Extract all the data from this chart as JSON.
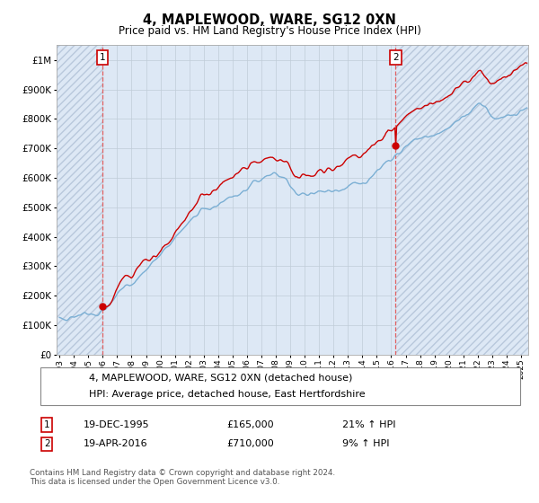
{
  "title": "4, MAPLEWOOD, WARE, SG12 0XN",
  "subtitle": "Price paid vs. HM Land Registry's House Price Index (HPI)",
  "ylim": [
    0,
    1050000
  ],
  "yticks": [
    0,
    100000,
    200000,
    300000,
    400000,
    500000,
    600000,
    700000,
    800000,
    900000,
    1000000
  ],
  "ytick_labels": [
    "£0",
    "£100K",
    "£200K",
    "£300K",
    "£400K",
    "£500K",
    "£600K",
    "£700K",
    "£800K",
    "£900K",
    "£1M"
  ],
  "sale1_date": 1995.97,
  "sale1_price": 165000,
  "sale1_label": "1",
  "sale1_text_date": "19-DEC-1995",
  "sale1_text_price": "£165,000",
  "sale1_text_hpi": "21% ↑ HPI",
  "sale2_date": 2016.3,
  "sale2_price": 710000,
  "sale2_label": "2",
  "sale2_text_date": "19-APR-2016",
  "sale2_text_price": "£710,000",
  "sale2_text_hpi": "9% ↑ HPI",
  "hpi_line_color": "#7bafd4",
  "price_line_color": "#cc0000",
  "sale_marker_color": "#cc0000",
  "dashed_line_color": "#e06060",
  "background_color": "#dde8f5",
  "hatch_edgecolor": "#b8c8dc",
  "grid_color": "#c0ccd8",
  "legend_label_red": "4, MAPLEWOOD, WARE, SG12 0XN (detached house)",
  "legend_label_blue": "HPI: Average price, detached house, East Hertfordshire",
  "footer": "Contains HM Land Registry data © Crown copyright and database right 2024.\nThis data is licensed under the Open Government Licence v3.0.",
  "xlim_start": 1992.8,
  "xlim_end": 2025.5,
  "xtick_years": [
    1993,
    1994,
    1995,
    1996,
    1997,
    1998,
    1999,
    2000,
    2001,
    2002,
    2003,
    2004,
    2005,
    2006,
    2007,
    2008,
    2009,
    2010,
    2011,
    2012,
    2013,
    2014,
    2015,
    2016,
    2017,
    2018,
    2019,
    2020,
    2021,
    2022,
    2023,
    2024,
    2025
  ]
}
